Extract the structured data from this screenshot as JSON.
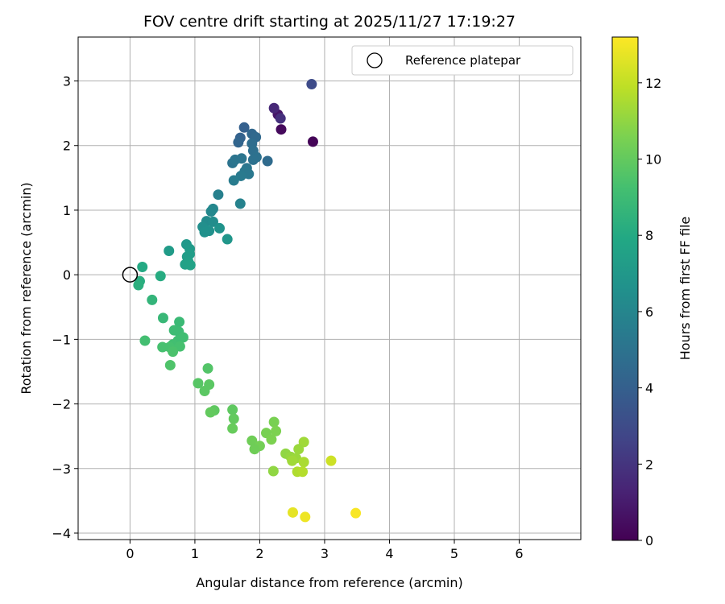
{
  "chart_data": {
    "type": "scatter",
    "title": "FOV centre drift starting at 2025/11/27 17:19:27",
    "xlabel": "Angular distance from reference (arcmin)",
    "ylabel": "Rotation from reference (arcmin)",
    "colorbar_label": "Hours from first FF file",
    "xlim": [
      -0.8,
      6.95
    ],
    "ylim": [
      -4.1,
      3.68
    ],
    "xticks": [
      0,
      1,
      2,
      3,
      4,
      5,
      6
    ],
    "yticks": [
      -4,
      -3,
      -2,
      -1,
      0,
      1,
      2,
      3
    ],
    "colorbar_range": [
      0,
      13.2
    ],
    "colorbar_ticks": [
      0,
      2,
      4,
      6,
      8,
      10,
      12
    ],
    "grid": true,
    "legend": {
      "location": "top-right",
      "entries": [
        "Reference platepar"
      ]
    },
    "reference_point": {
      "x": 0,
      "y": 0
    },
    "points": [
      {
        "x": 2.82,
        "y": 2.06,
        "h": 0.1
      },
      {
        "x": 2.33,
        "y": 2.25,
        "h": 0.3
      },
      {
        "x": 2.28,
        "y": 2.48,
        "h": 0.8
      },
      {
        "x": 2.22,
        "y": 2.58,
        "h": 1.5
      },
      {
        "x": 2.32,
        "y": 2.42,
        "h": 1.8
      },
      {
        "x": 2.8,
        "y": 2.95,
        "h": 3.0
      },
      {
        "x": 1.76,
        "y": 2.28,
        "h": 4.0
      },
      {
        "x": 1.7,
        "y": 2.12,
        "h": 4.1
      },
      {
        "x": 1.67,
        "y": 2.05,
        "h": 4.3
      },
      {
        "x": 1.88,
        "y": 2.18,
        "h": 4.4
      },
      {
        "x": 1.94,
        "y": 2.13,
        "h": 4.5
      },
      {
        "x": 1.88,
        "y": 2.03,
        "h": 4.7
      },
      {
        "x": 1.9,
        "y": 1.92,
        "h": 4.8
      },
      {
        "x": 1.95,
        "y": 1.82,
        "h": 4.9
      },
      {
        "x": 1.9,
        "y": 1.78,
        "h": 4.9
      },
      {
        "x": 1.58,
        "y": 1.73,
        "h": 5.0
      },
      {
        "x": 1.62,
        "y": 1.78,
        "h": 5.1
      },
      {
        "x": 1.72,
        "y": 1.8,
        "h": 5.1
      },
      {
        "x": 2.12,
        "y": 1.76,
        "h": 4.6
      },
      {
        "x": 1.8,
        "y": 1.65,
        "h": 5.2
      },
      {
        "x": 1.77,
        "y": 1.6,
        "h": 5.3
      },
      {
        "x": 1.83,
        "y": 1.56,
        "h": 5.3
      },
      {
        "x": 1.71,
        "y": 1.53,
        "h": 5.4
      },
      {
        "x": 1.6,
        "y": 1.46,
        "h": 5.5
      },
      {
        "x": 1.36,
        "y": 1.24,
        "h": 5.7
      },
      {
        "x": 1.7,
        "y": 1.1,
        "h": 5.8
      },
      {
        "x": 1.28,
        "y": 1.02,
        "h": 6.0
      },
      {
        "x": 1.25,
        "y": 0.98,
        "h": 6.1
      },
      {
        "x": 1.18,
        "y": 0.83,
        "h": 6.3
      },
      {
        "x": 1.28,
        "y": 0.82,
        "h": 6.4
      },
      {
        "x": 1.12,
        "y": 0.74,
        "h": 6.5
      },
      {
        "x": 1.22,
        "y": 0.68,
        "h": 6.6
      },
      {
        "x": 1.15,
        "y": 0.66,
        "h": 6.6
      },
      {
        "x": 1.38,
        "y": 0.72,
        "h": 6.7
      },
      {
        "x": 1.5,
        "y": 0.55,
        "h": 6.9
      },
      {
        "x": 0.87,
        "y": 0.47,
        "h": 7.0
      },
      {
        "x": 0.92,
        "y": 0.4,
        "h": 7.1
      },
      {
        "x": 0.6,
        "y": 0.37,
        "h": 7.2
      },
      {
        "x": 0.92,
        "y": 0.32,
        "h": 7.3
      },
      {
        "x": 0.88,
        "y": 0.28,
        "h": 7.3
      },
      {
        "x": 0.9,
        "y": 0.2,
        "h": 7.4
      },
      {
        "x": 0.85,
        "y": 0.16,
        "h": 7.5
      },
      {
        "x": 0.93,
        "y": 0.15,
        "h": 7.6
      },
      {
        "x": 0.19,
        "y": 0.12,
        "h": 8.0
      },
      {
        "x": 0.47,
        "y": -0.02,
        "h": 8.1
      },
      {
        "x": 0.15,
        "y": -0.1,
        "h": 8.2
      },
      {
        "x": 0.13,
        "y": -0.16,
        "h": 8.3
      },
      {
        "x": 0.34,
        "y": -0.39,
        "h": 8.6
      },
      {
        "x": 0.51,
        "y": -0.67,
        "h": 8.8
      },
      {
        "x": 0.76,
        "y": -0.73,
        "h": 8.9
      },
      {
        "x": 0.68,
        "y": -0.86,
        "h": 9.0
      },
      {
        "x": 0.75,
        "y": -0.88,
        "h": 9.0
      },
      {
        "x": 0.82,
        "y": -0.97,
        "h": 9.1
      },
      {
        "x": 0.74,
        "y": -1.02,
        "h": 9.1
      },
      {
        "x": 0.23,
        "y": -1.02,
        "h": 9.2
      },
      {
        "x": 0.66,
        "y": -1.08,
        "h": 9.2
      },
      {
        "x": 0.61,
        "y": -1.12,
        "h": 9.3
      },
      {
        "x": 0.5,
        "y": -1.12,
        "h": 9.3
      },
      {
        "x": 0.77,
        "y": -1.11,
        "h": 9.3
      },
      {
        "x": 0.66,
        "y": -1.19,
        "h": 9.4
      },
      {
        "x": 0.62,
        "y": -1.4,
        "h": 9.5
      },
      {
        "x": 1.2,
        "y": -1.45,
        "h": 9.6
      },
      {
        "x": 1.05,
        "y": -1.68,
        "h": 9.7
      },
      {
        "x": 1.22,
        "y": -1.7,
        "h": 9.8
      },
      {
        "x": 1.15,
        "y": -1.8,
        "h": 9.8
      },
      {
        "x": 1.58,
        "y": -2.09,
        "h": 9.9
      },
      {
        "x": 1.3,
        "y": -2.1,
        "h": 9.9
      },
      {
        "x": 1.24,
        "y": -2.13,
        "h": 10.0
      },
      {
        "x": 1.6,
        "y": -2.23,
        "h": 10.0
      },
      {
        "x": 1.58,
        "y": -2.38,
        "h": 10.1
      },
      {
        "x": 2.22,
        "y": -2.28,
        "h": 10.5
      },
      {
        "x": 2.25,
        "y": -2.42,
        "h": 10.6
      },
      {
        "x": 2.1,
        "y": -2.45,
        "h": 10.5
      },
      {
        "x": 2.18,
        "y": -2.55,
        "h": 10.6
      },
      {
        "x": 1.88,
        "y": -2.57,
        "h": 10.3
      },
      {
        "x": 2.0,
        "y": -2.65,
        "h": 10.4
      },
      {
        "x": 1.92,
        "y": -2.7,
        "h": 10.3
      },
      {
        "x": 2.68,
        "y": -2.59,
        "h": 11.3
      },
      {
        "x": 2.6,
        "y": -2.7,
        "h": 11.2
      },
      {
        "x": 2.4,
        "y": -2.77,
        "h": 11.0
      },
      {
        "x": 2.48,
        "y": -2.82,
        "h": 11.1
      },
      {
        "x": 2.56,
        "y": -2.84,
        "h": 11.2
      },
      {
        "x": 2.5,
        "y": -2.88,
        "h": 11.3
      },
      {
        "x": 2.68,
        "y": -2.9,
        "h": 11.5
      },
      {
        "x": 3.1,
        "y": -2.88,
        "h": 12.2
      },
      {
        "x": 2.21,
        "y": -3.04,
        "h": 11.0
      },
      {
        "x": 2.58,
        "y": -3.05,
        "h": 11.6
      },
      {
        "x": 2.66,
        "y": -3.05,
        "h": 11.7
      },
      {
        "x": 2.51,
        "y": -3.68,
        "h": 12.7
      },
      {
        "x": 2.7,
        "y": -3.75,
        "h": 12.9
      },
      {
        "x": 3.48,
        "y": -3.69,
        "h": 13.1
      }
    ]
  }
}
